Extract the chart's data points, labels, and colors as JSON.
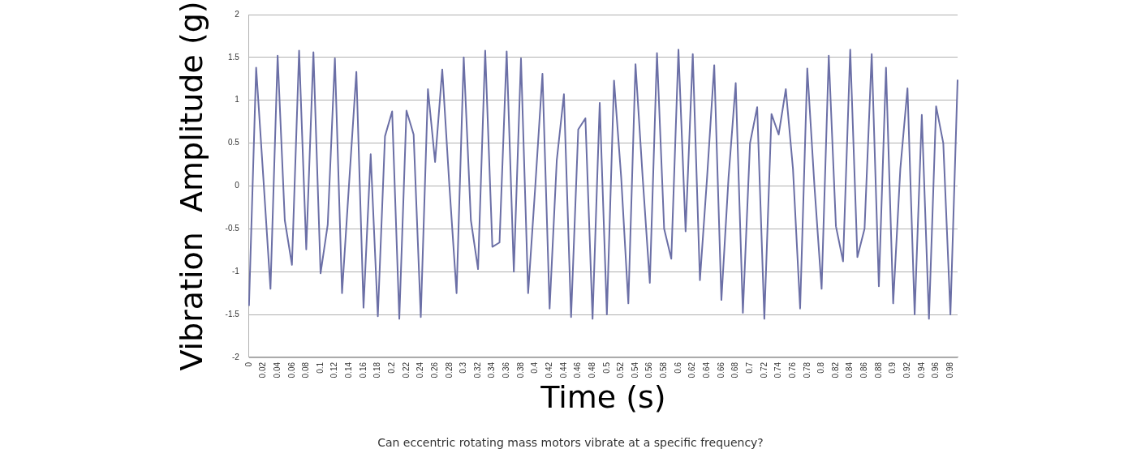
{
  "chart_data": {
    "type": "line",
    "xlabel": "Time (s)",
    "ylabel": "Vibration  Amplitude (g)",
    "categories": [
      "0",
      null,
      "0.02",
      null,
      "0.04",
      null,
      "0.06",
      null,
      "0.08",
      null,
      "0.1",
      null,
      "0.12",
      null,
      "0.14",
      null,
      "0.16",
      null,
      "0.18",
      null,
      "0.2",
      null,
      "0.22",
      null,
      "0.24",
      null,
      "0.26",
      null,
      "0.28",
      null,
      "0.3",
      null,
      "0.32",
      null,
      "0.34",
      null,
      "0.36",
      null,
      "0.38",
      null,
      "0.4",
      null,
      "0.42",
      null,
      "0.44",
      null,
      "0.46",
      null,
      "0.48",
      null,
      "0.5",
      null,
      "0.52",
      null,
      "0.54",
      null,
      "0.56",
      null,
      "0.58",
      null,
      "0.6",
      null,
      "0.62",
      null,
      "0.64",
      null,
      "0.66",
      null,
      "0.68",
      null,
      "0.7",
      null,
      "0.72",
      null,
      "0.74",
      null,
      "0.76",
      null,
      "0.78",
      null,
      "0.8",
      null,
      "0.82",
      null,
      "0.84",
      null,
      "0.86",
      null,
      "0.88",
      null,
      "0.9",
      null,
      "0.92",
      null,
      "0.94",
      null,
      "0.96",
      null,
      "0.98",
      null
    ],
    "series": [
      {
        "color": "#6b6fa6",
        "values": [
          -1.4,
          1.38,
          0.1,
          -1.2,
          1.52,
          -0.4,
          -0.92,
          1.58,
          -0.74,
          1.56,
          -1.02,
          -0.45,
          1.49,
          -1.25,
          0.05,
          1.33,
          -1.42,
          0.37,
          -1.52,
          0.58,
          0.87,
          -1.55,
          0.88,
          0.6,
          -1.53,
          1.13,
          0.28,
          1.36,
          0.0,
          -1.25,
          1.5,
          -0.4,
          -0.97,
          1.58,
          -0.71,
          -0.66,
          1.57,
          -1.0,
          1.49,
          -1.25,
          0.0,
          1.31,
          -1.43,
          0.3,
          1.07,
          -1.53,
          0.66,
          0.79,
          -1.55,
          0.97,
          -1.5,
          1.23,
          0.1,
          -1.37,
          1.42,
          0.1,
          -1.13,
          1.55,
          -0.5,
          -0.85,
          1.59,
          -0.53,
          1.54,
          -1.1,
          0.1,
          1.41,
          -1.33,
          0.1,
          1.2,
          -1.48,
          0.5,
          0.92,
          -1.55,
          0.84,
          0.6,
          1.13,
          0.2,
          -1.43,
          1.37,
          0.0,
          -1.2,
          1.52,
          -0.47,
          -0.88,
          1.59,
          -0.83,
          -0.5,
          1.54,
          -1.17,
          1.38,
          -1.37,
          0.2,
          1.14,
          -1.5,
          0.83,
          -1.55,
          0.93,
          0.5,
          -1.5,
          1.24
        ]
      }
    ],
    "ylim": [
      -2,
      2
    ],
    "yticks": [
      -2,
      -1.5,
      -1,
      -0.5,
      0,
      0.5,
      1,
      1.5,
      2
    ],
    "grid": "y",
    "legend": false,
    "marker": "none",
    "line_style": "solid",
    "annotations": [
      "Can eccentric rotating mass motors vibrate at a specific frequency?"
    ]
  }
}
